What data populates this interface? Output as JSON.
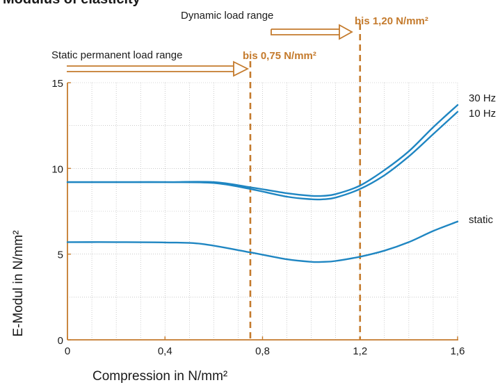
{
  "title": "Modulus of elasticity",
  "colors": {
    "axis": "#c47a2c",
    "series": "#1f86c2",
    "annotation": "#c47a2c",
    "grid": "#aaaaaa",
    "text": "#1a1a1a"
  },
  "annotations": {
    "dynamic_label": "Dynamic load range",
    "static_label": "Static permanent load range",
    "dynamic_limit": "bis 1,20 N/mm²",
    "static_limit": "bis 0,75 N/mm²"
  },
  "chart_data": {
    "type": "line",
    "title": "Modulus of elasticity",
    "xlabel": "Compression in N/mm²",
    "ylabel": "E-Modul in N/mm²",
    "xlim": [
      0,
      1.6
    ],
    "ylim": [
      0,
      15
    ],
    "x_ticks": [
      0,
      0.4,
      0.8,
      1.2,
      1.6
    ],
    "x_tick_labels": [
      "0",
      "0,4",
      "0,8",
      "1,2",
      "1,6"
    ],
    "y_ticks": [
      0,
      5,
      10,
      15
    ],
    "y_tick_labels": [
      "0",
      "5",
      "10",
      "15"
    ],
    "grid": true,
    "vertical_markers": [
      0.75,
      1.2
    ],
    "series": [
      {
        "name": "30 Hz",
        "x": [
          0,
          0.2,
          0.4,
          0.6,
          0.75,
          0.9,
          1.0,
          1.05,
          1.1,
          1.2,
          1.3,
          1.4,
          1.5,
          1.6
        ],
        "y": [
          9.2,
          9.2,
          9.2,
          9.2,
          8.9,
          8.55,
          8.4,
          8.4,
          8.5,
          9.0,
          9.9,
          11.0,
          12.4,
          13.7
        ]
      },
      {
        "name": "10 Hz",
        "x": [
          0,
          0.2,
          0.4,
          0.6,
          0.75,
          0.9,
          1.0,
          1.05,
          1.1,
          1.2,
          1.3,
          1.4,
          1.5,
          1.6
        ],
        "y": [
          9.2,
          9.2,
          9.2,
          9.15,
          8.8,
          8.35,
          8.2,
          8.2,
          8.3,
          8.8,
          9.6,
          10.7,
          12.0,
          13.3
        ]
      },
      {
        "name": "static",
        "x": [
          0,
          0.2,
          0.4,
          0.55,
          0.75,
          0.9,
          1.0,
          1.05,
          1.1,
          1.2,
          1.3,
          1.4,
          1.5,
          1.6
        ],
        "y": [
          5.7,
          5.7,
          5.68,
          5.6,
          5.1,
          4.7,
          4.55,
          4.55,
          4.6,
          4.85,
          5.2,
          5.7,
          6.35,
          6.9
        ]
      }
    ]
  }
}
